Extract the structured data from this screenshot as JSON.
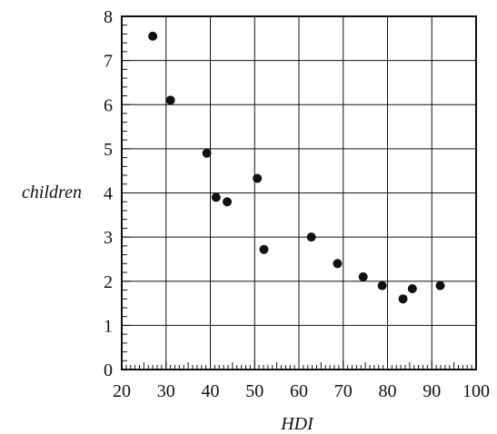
{
  "chart_data": {
    "type": "scatter",
    "title": "",
    "xlabel": "HDI",
    "ylabel": "children",
    "xlim": [
      20,
      100
    ],
    "ylim": [
      0,
      8
    ],
    "x_major_ticks": [
      20,
      30,
      40,
      50,
      60,
      70,
      80,
      90,
      100
    ],
    "y_major_ticks": [
      0,
      1,
      2,
      3,
      4,
      5,
      6,
      7,
      8
    ],
    "x_minor_step": 1,
    "y_minor_step": 0.2,
    "grid": true,
    "legend": "none",
    "colors": {
      "point": "#111111",
      "grid": "#111111",
      "background": "#ffffff"
    },
    "series": [
      {
        "points": [
          {
            "x": 27,
            "y": 7.55
          },
          {
            "x": 31,
            "y": 6.1
          },
          {
            "x": 39.2,
            "y": 4.9
          },
          {
            "x": 41.3,
            "y": 3.9
          },
          {
            "x": 43.8,
            "y": 3.8
          },
          {
            "x": 50.6,
            "y": 4.33
          },
          {
            "x": 52.1,
            "y": 2.72
          },
          {
            "x": 62.8,
            "y": 3.0
          },
          {
            "x": 68.7,
            "y": 2.4
          },
          {
            "x": 74.5,
            "y": 2.1
          },
          {
            "x": 78.8,
            "y": 1.9
          },
          {
            "x": 83.5,
            "y": 1.6
          },
          {
            "x": 85.6,
            "y": 1.83
          },
          {
            "x": 91.9,
            "y": 1.9
          }
        ]
      }
    ]
  }
}
